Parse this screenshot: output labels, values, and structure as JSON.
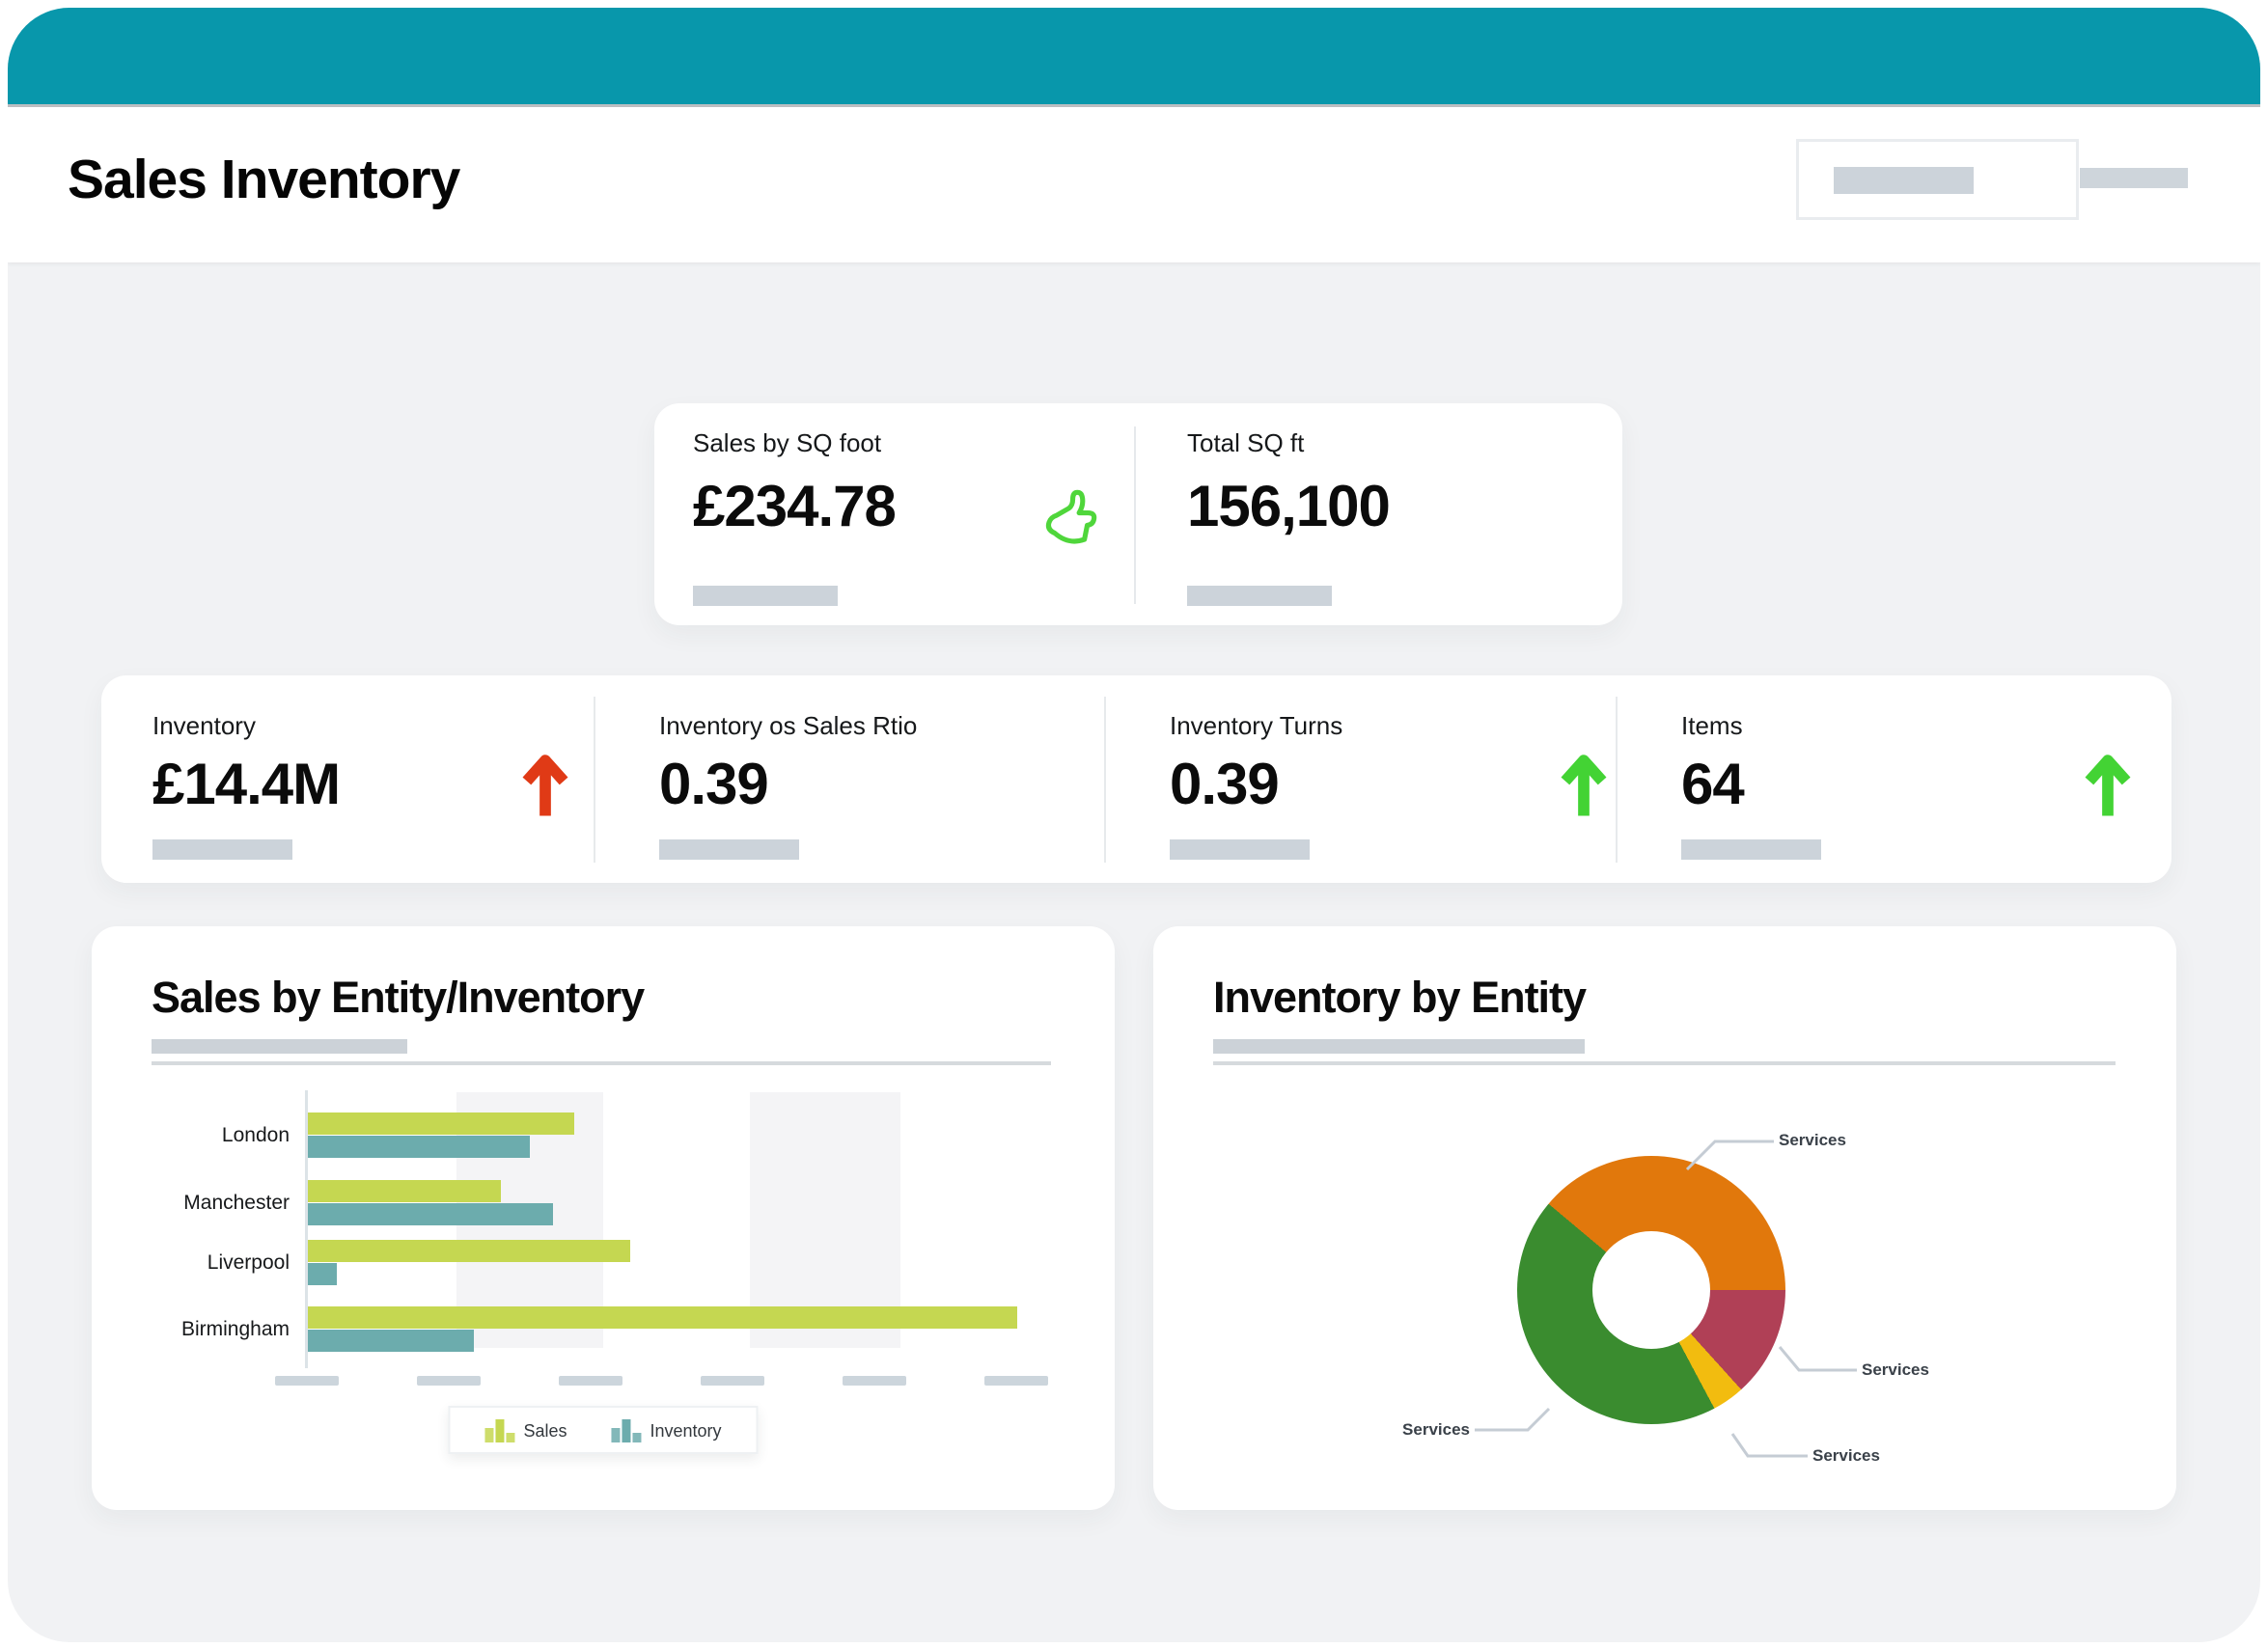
{
  "app": {
    "title": "Sales Inventory"
  },
  "colors": {
    "brand_teal": "#0897ab",
    "page_background": "#f1f2f4",
    "positive_green": "#43d334",
    "negative_red": "#e03a16",
    "skeleton_gray": "#ccd3da"
  },
  "kpi_top": {
    "left": {
      "label": "Sales by SQ foot",
      "value": "£234.78",
      "icon": "thumbs-up-icon",
      "icon_color": "#4fd63b"
    },
    "right": {
      "label": "Total SQ ft",
      "value": "156,100"
    }
  },
  "kpi_row": [
    {
      "label": "Inventory",
      "value": "£14.4M",
      "trend": "up",
      "trend_color": "#e03a16"
    },
    {
      "label": "Inventory os Sales Rtio",
      "value": "0.39",
      "trend": "none"
    },
    {
      "label": "Inventory Turns",
      "value": "0.39",
      "trend": "up",
      "trend_color": "#43d334"
    },
    {
      "label": "Items",
      "value": "64",
      "trend": "up",
      "trend_color": "#43d334"
    }
  ],
  "chart_data": [
    {
      "type": "bar",
      "orientation": "horizontal",
      "title": "Sales by Entity/Inventory",
      "categories": [
        "London",
        "Manchester",
        "Liverpool",
        "Birmingham"
      ],
      "series": [
        {
          "name": "Sales",
          "color": "#c5d751",
          "values": [
            37.6,
            27.2,
            45.5,
            100
          ]
        },
        {
          "name": "Inventory",
          "color": "#6cacad",
          "values": [
            31.3,
            34.5,
            4.1,
            23.4
          ]
        }
      ],
      "xlim": [
        0,
        100
      ],
      "gridline_count": 6,
      "x_tick_labels": "skeleton-placeholders",
      "legend_position": "bottom"
    },
    {
      "type": "pie",
      "subtype": "donut",
      "title": "Inventory by Entity",
      "start_angle_deg": -50,
      "hole_ratio": 0.44,
      "slices": [
        {
          "label": "Services",
          "value": 38.9,
          "color": "#e1780c"
        },
        {
          "label": "Services",
          "value": 13.3,
          "color": "#b04056"
        },
        {
          "label": "Services",
          "value": 3.9,
          "color": "#f2bc0f"
        },
        {
          "label": "Services",
          "value": 43.9,
          "color": "#3a8c2f"
        }
      ]
    }
  ]
}
